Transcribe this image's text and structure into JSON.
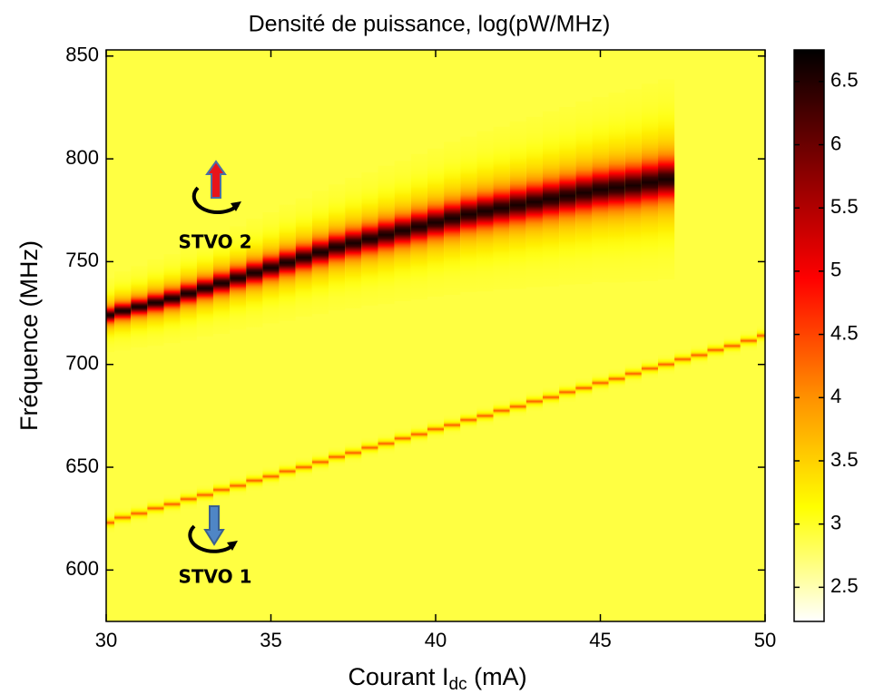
{
  "chart_data": {
    "type": "heatmap",
    "title": "Densité de puissance, log(pW/MHz)",
    "xlabel_parts": [
      "Courant I",
      "dc",
      " (mA)"
    ],
    "ylabel": "Fréquence (MHz)",
    "xlim": [
      30,
      50
    ],
    "xticks": [
      30,
      35,
      40,
      45,
      50
    ],
    "ylim": [
      575,
      853
    ],
    "yticks": [
      600,
      650,
      700,
      750,
      800,
      850
    ],
    "clim": [
      2.23,
      6.75
    ],
    "cticks": [
      2.5,
      3,
      3.5,
      4,
      4.5,
      5,
      5.5,
      6,
      6.5
    ],
    "colormap": [
      "#ffffff",
      "#ffff00",
      "#ff8c00",
      "#ff0000",
      "#800000",
      "#000000"
    ],
    "background": 2.9,
    "x": [
      30,
      30.5,
      31,
      31.5,
      32,
      32.5,
      33,
      33.5,
      34,
      34.5,
      35,
      35.5,
      36,
      36.5,
      37,
      37.5,
      38,
      38.5,
      39,
      39.5,
      40,
      40.5,
      41,
      41.5,
      42,
      42.5,
      43,
      43.5,
      44,
      44.5,
      45,
      45.5,
      46,
      46.5,
      47,
      47.5,
      48,
      48.5,
      49,
      49.5,
      50
    ],
    "series": [
      {
        "name": "STVO 2",
        "peak": 6.6,
        "values": [
          724,
          726,
          728,
          730,
          732,
          734.5,
          737,
          739.5,
          742,
          744.5,
          747,
          749.5,
          752,
          754.5,
          757,
          759,
          761,
          763,
          765,
          767,
          769,
          771,
          773,
          774.5,
          776,
          777.5,
          779,
          780.5,
          782,
          783.5,
          785,
          786,
          787,
          788.5,
          790,
          null,
          null,
          null,
          null,
          null,
          null
        ],
        "widths": [
          3,
          3.2,
          3.3,
          3.5,
          3.6,
          3.8,
          3.9,
          4.1,
          4.2,
          4.4,
          4.5,
          4.7,
          4.8,
          5,
          5.1,
          5.3,
          5.4,
          5.6,
          5.7,
          5.9,
          6,
          6.2,
          6.3,
          6.5,
          6.6,
          6.8,
          6.9,
          7.1,
          7.2,
          7.4,
          7.5,
          7.7,
          7.8,
          8,
          8.1,
          null,
          null,
          null,
          null,
          null,
          null
        ]
      },
      {
        "name": "STVO 1",
        "peak": 4.3,
        "width": 0.8,
        "values": [
          623,
          625.5,
          627.5,
          630,
          632,
          634.5,
          636.5,
          639,
          641,
          643.5,
          645.5,
          648,
          650,
          652.5,
          655,
          657,
          659.5,
          661.5,
          664,
          666,
          668.5,
          670.5,
          673,
          675,
          677.5,
          679.5,
          682,
          684,
          686.5,
          688.5,
          691,
          693,
          695.5,
          698,
          700,
          702.5,
          704.5,
          707,
          709,
          711.5,
          714
        ]
      }
    ]
  }
}
